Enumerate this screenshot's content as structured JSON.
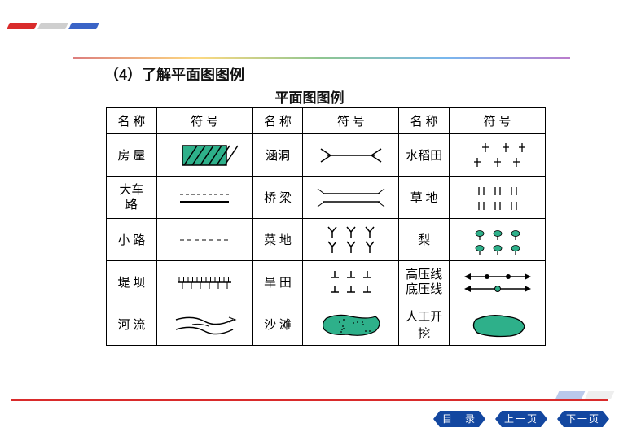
{
  "heading": "（4）了解平面图图例",
  "subtitle": "平面图图例",
  "headers": {
    "name": "名 称",
    "symbol": "符   号"
  },
  "rows": [
    {
      "n1": "房 屋",
      "s1": "hatched-rect",
      "n2": "涵洞",
      "s2": "culvert",
      "n3": "水稻田",
      "s3": "rice"
    },
    {
      "n1": "大车\n路",
      "s1": "road-main",
      "n2": "桥 梁",
      "s2": "bridge",
      "n3": "草 地",
      "s3": "grass"
    },
    {
      "n1": "小 路",
      "s1": "road-minor",
      "n2": "菜 地",
      "s2": "veg",
      "n3": "梨",
      "s3": "orchard"
    },
    {
      "n1": "堤 坝",
      "s1": "dam",
      "n2": "旱 田",
      "s2": "dryland",
      "n3": "高压线\n底压线",
      "s3": "powerline"
    },
    {
      "n1": "河 流",
      "s1": "river",
      "n2": "沙 滩",
      "s2": "beach",
      "n3": "人工开挖",
      "s3": "excavation"
    }
  ],
  "nav": {
    "toc": "目　录",
    "prev": "上一页",
    "next": "下一页"
  },
  "colors": {
    "fill_green": "#2eb08a",
    "nav_blue": "#1347a0"
  }
}
